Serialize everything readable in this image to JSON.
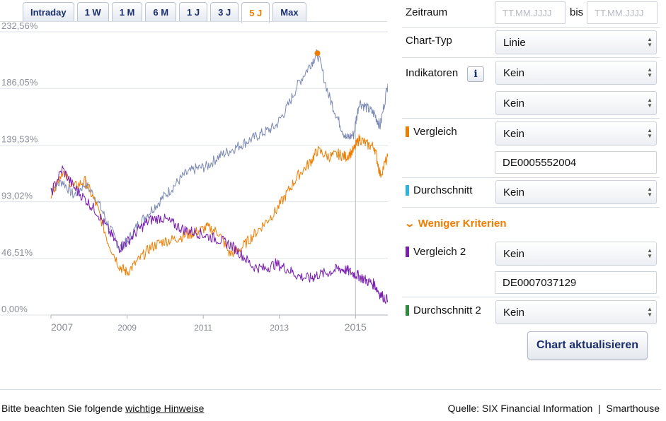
{
  "tabs": [
    {
      "label": "Intraday",
      "active": false
    },
    {
      "label": "1 W",
      "active": false
    },
    {
      "label": "1 M",
      "active": false
    },
    {
      "label": "6 M",
      "active": false
    },
    {
      "label": "1 J",
      "active": false
    },
    {
      "label": "3 J",
      "active": false
    },
    {
      "label": "5 J",
      "active": true
    },
    {
      "label": "Max",
      "active": false
    }
  ],
  "form": {
    "zeitraum_label": "Zeitraum",
    "from_placeholder": "TT.MM.JJJJ",
    "bis_label": "bis",
    "to_placeholder": "TT.MM.JJJJ",
    "charttyp_label": "Chart-Typ",
    "charttyp_value": "Linie",
    "indikatoren_label": "Indikatoren",
    "info_glyph": "i",
    "indikator1_value": "Kein",
    "indikator2_value": "Kein",
    "vergleich_label": "Vergleich",
    "vergleich_value": "Kein",
    "vergleich_isin": "DE0005552004",
    "durchschnitt_label": "Durchschnitt",
    "durchschnitt_value": "Kein",
    "weniger_label": "Weniger Kriterien",
    "vergleich2_label": "Vergleich 2",
    "vergleich2_value": "Kein",
    "vergleich2_isin": "DE0007037129",
    "durchschnitt2_label": "Durchschnitt 2",
    "durchschnitt2_value": "Kein",
    "submit_label": "Chart aktualisieren",
    "colors": {
      "vergleich": "#f07d00",
      "durchschnitt": "#2cb5e0",
      "vergleich2": "#7a1fb0",
      "durchschnitt2": "#2e8b3e"
    }
  },
  "footer": {
    "note_prefix": "Bitte beachten Sie folgende",
    "note_link": "wichtige Hinweise",
    "source": "Quelle: SIX Financial Information  |  Smarthouse"
  },
  "chart_data": {
    "type": "line",
    "x_ticks": [
      "2007",
      "2009",
      "2011",
      "2013",
      "2015"
    ],
    "y_ticks": [
      "0,00%",
      "46,51%",
      "93,02%",
      "139,53%",
      "186,05%",
      "232,56%"
    ],
    "ylim": [
      0,
      232.56
    ],
    "xlim": [
      2007.0,
      2015.85
    ],
    "grid": true,
    "series": [
      {
        "color": "#7b89b3",
        "x": [
          2007.0,
          2007.3,
          2007.6,
          2007.9,
          2008.2,
          2008.5,
          2008.8,
          2009.0,
          2009.3,
          2009.6,
          2009.9,
          2010.2,
          2010.5,
          2010.8,
          2011.1,
          2011.4,
          2011.7,
          2012.0,
          2012.3,
          2012.6,
          2012.9,
          2013.2,
          2013.5,
          2013.8,
          2014.0,
          2014.3,
          2014.55,
          2014.75,
          2014.95,
          2015.1,
          2015.3,
          2015.5,
          2015.65,
          2015.85
        ],
        "y": [
          103,
          110,
          98,
          108,
          95,
          75,
          55,
          60,
          75,
          85,
          95,
          105,
          115,
          120,
          122,
          130,
          135,
          140,
          145,
          150,
          155,
          170,
          190,
          205,
          215,
          180,
          160,
          145,
          148,
          175,
          170,
          165,
          155,
          190
        ]
      },
      {
        "color": "#f07d00",
        "x": [
          2007.0,
          2007.3,
          2007.6,
          2007.9,
          2008.2,
          2008.5,
          2008.8,
          2009.0,
          2009.3,
          2009.6,
          2009.9,
          2010.2,
          2010.5,
          2010.8,
          2011.1,
          2011.4,
          2011.7,
          2012.0,
          2012.3,
          2012.6,
          2012.9,
          2013.2,
          2013.5,
          2013.8,
          2014.0,
          2014.3,
          2014.55,
          2014.75,
          2014.95,
          2015.1,
          2015.3,
          2015.5,
          2015.65,
          2015.85
        ],
        "y": [
          100,
          118,
          105,
          110,
          90,
          60,
          40,
          35,
          45,
          55,
          60,
          62,
          65,
          68,
          72,
          68,
          50,
          55,
          65,
          75,
          85,
          100,
          115,
          125,
          135,
          130,
          132,
          130,
          135,
          145,
          140,
          138,
          115,
          130
        ]
      },
      {
        "color": "#7a1fb0",
        "x": [
          2007.0,
          2007.3,
          2007.6,
          2007.9,
          2008.2,
          2008.5,
          2008.8,
          2009.0,
          2009.3,
          2009.6,
          2009.9,
          2010.2,
          2010.5,
          2010.8,
          2011.1,
          2011.4,
          2011.7,
          2012.0,
          2012.3,
          2012.6,
          2012.9,
          2013.2,
          2013.5,
          2013.8,
          2014.0,
          2014.3,
          2014.55,
          2014.75,
          2014.95,
          2015.1,
          2015.3,
          2015.5,
          2015.65,
          2015.85
        ],
        "y": [
          100,
          120,
          105,
          95,
          85,
          70,
          55,
          60,
          70,
          78,
          80,
          75,
          70,
          68,
          65,
          62,
          58,
          50,
          40,
          38,
          42,
          38,
          32,
          30,
          33,
          35,
          38,
          37,
          34,
          32,
          28,
          25,
          17,
          12
        ]
      }
    ],
    "annotations": [
      {
        "type": "point",
        "series": 0,
        "x": 2014.0,
        "y": 215,
        "color": "#f07d00"
      }
    ]
  }
}
